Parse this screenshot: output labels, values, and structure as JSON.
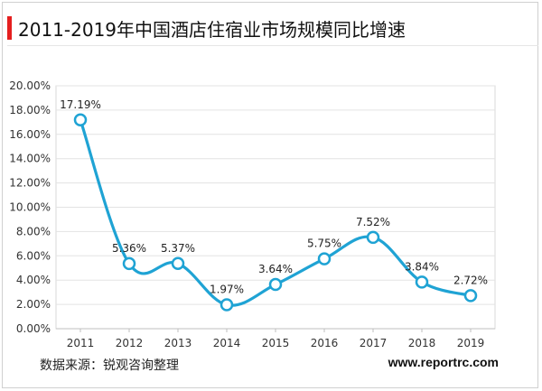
{
  "header": {
    "title": "2011-2019年中国酒店住宿业市场规模同比增速",
    "accent_color": "#e51f1f"
  },
  "footer": {
    "source": "数据来源：锐观咨询整理",
    "url": "www.reportrc.com"
  },
  "chart_data": {
    "type": "line",
    "categories": [
      "2011",
      "2012",
      "2013",
      "2014",
      "2015",
      "2016",
      "2017",
      "2018",
      "2019"
    ],
    "values": [
      17.19,
      5.36,
      5.37,
      1.97,
      3.64,
      5.75,
      7.52,
      3.84,
      2.72
    ],
    "data_labels": [
      "17.19%",
      "5.36%",
      "5.37%",
      "1.97%",
      "3.64%",
      "5.75%",
      "7.52%",
      "3.84%",
      "2.72%"
    ],
    "ylim": [
      0,
      20
    ],
    "yticks": [
      "0.00%",
      "2.00%",
      "4.00%",
      "6.00%",
      "8.00%",
      "10.00%",
      "12.00%",
      "14.00%",
      "16.00%",
      "18.00%",
      "20.00%"
    ],
    "line_color": "#1fa3d4",
    "smooth": true,
    "grid": "horizontal",
    "legend": "none"
  }
}
